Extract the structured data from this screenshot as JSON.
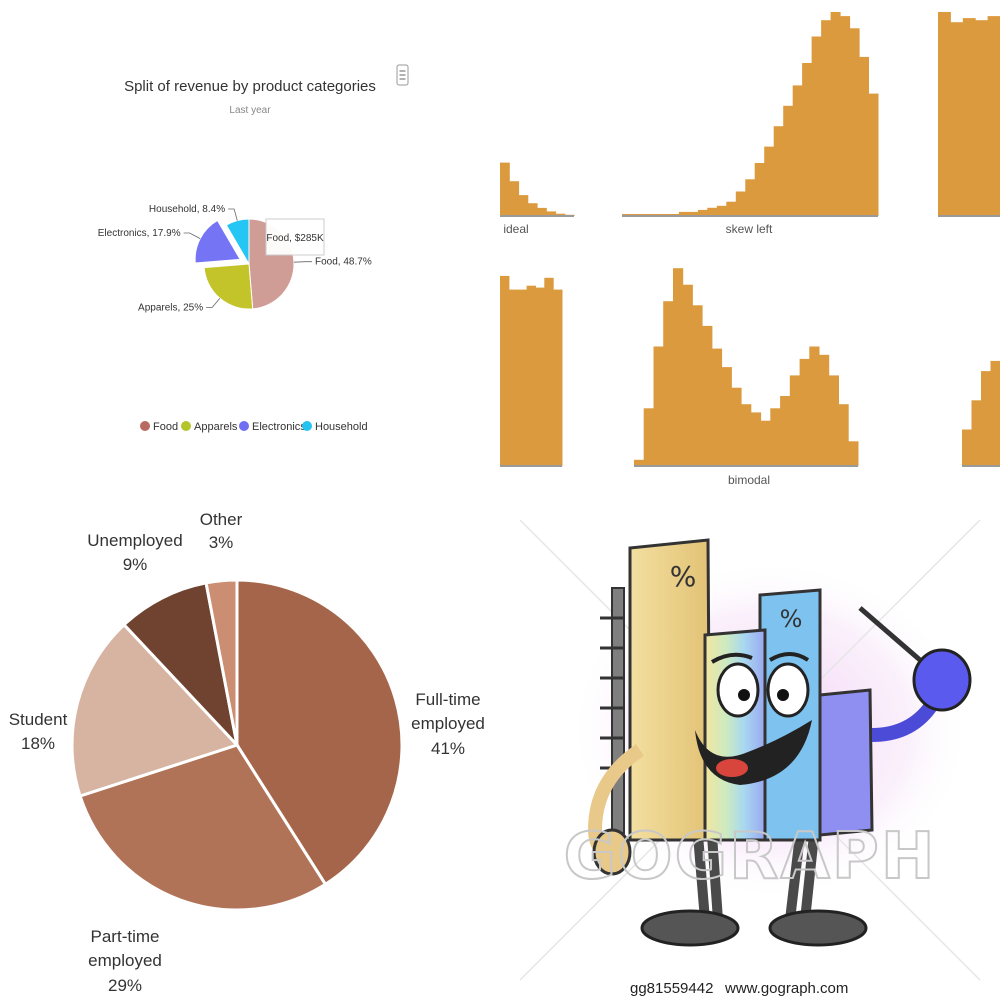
{
  "chart_data": [
    {
      "type": "pie",
      "title": "Split of revenue by product categories",
      "subtitle": "Last year",
      "slices": [
        {
          "name": "Food",
          "value": 48.7,
          "label": "Food, 48.7%",
          "color": "#d09d96"
        },
        {
          "name": "Apparels",
          "value": 25,
          "label": "Apparels, 25%",
          "color": "#c2c42a"
        },
        {
          "name": "Electronics",
          "value": 17.9,
          "label": "Electronics, 17.9%",
          "color": "#7474f4"
        },
        {
          "name": "Household",
          "value": 8.4,
          "label": "Household, 8.4%",
          "color": "#25c6f4"
        }
      ],
      "legend": [
        "Food",
        "Apparels",
        "Electronics",
        "Household"
      ],
      "legend_colors": [
        "#b86a62",
        "#b4c42a",
        "#6f6ff2",
        "#27c3f0"
      ],
      "legend_position": "bottom",
      "tooltip": "Food, $285K",
      "sliced": "Electronics"
    },
    {
      "type": "bar",
      "panels": [
        {
          "caption": "ideal",
          "heights": [
            0.46,
            0.3,
            0.18,
            0.11,
            0.07,
            0.04,
            0.02,
            0.01
          ]
        },
        {
          "caption": "skew left",
          "heights": [
            0.01,
            0.01,
            0.01,
            0.01,
            0.01,
            0.01,
            0.02,
            0.02,
            0.03,
            0.04,
            0.05,
            0.07,
            0.12,
            0.18,
            0.26,
            0.34,
            0.44,
            0.54,
            0.64,
            0.75,
            0.88,
            0.96,
            1.0,
            0.98,
            0.92,
            0.78,
            0.6
          ]
        },
        {
          "caption": "",
          "heights": [
            1.0,
            0.95,
            0.97,
            0.96,
            0.98
          ]
        },
        {
          "caption": "",
          "heights": [
            0.97,
            0.9,
            0.9,
            0.92,
            0.91,
            0.96,
            0.9
          ]
        },
        {
          "caption": "bimodal",
          "heights": [
            0.03,
            0.28,
            0.58,
            0.8,
            0.96,
            0.88,
            0.78,
            0.68,
            0.57,
            0.48,
            0.38,
            0.3,
            0.26,
            0.22,
            0.28,
            0.34,
            0.44,
            0.52,
            0.58,
            0.54,
            0.44,
            0.3,
            0.12
          ]
        },
        {
          "caption": "",
          "heights": [
            0.25,
            0.45,
            0.65,
            0.72
          ]
        }
      ],
      "color": "#dc9a3f"
    },
    {
      "type": "pie",
      "slices": [
        {
          "name": "Full-time employed",
          "value": 41,
          "line1": "Full-time",
          "line2": "employed",
          "pct": "41%",
          "color": "#a5654a"
        },
        {
          "name": "Part-time employed",
          "value": 29,
          "line1": "Part-time",
          "line2": "employed",
          "pct": "29%",
          "color": "#b07358"
        },
        {
          "name": "Student",
          "value": 18,
          "line1": "Student",
          "line2": "",
          "pct": "18%",
          "color": "#d7b4a2"
        },
        {
          "name": "Unemployed",
          "value": 9,
          "line1": "Unemployed",
          "line2": "",
          "pct": "9%",
          "color": "#6f432f"
        },
        {
          "name": "Other",
          "value": 3,
          "line1": "Other",
          "line2": "",
          "pct": "3%",
          "color": "#cc8e72"
        }
      ]
    }
  ],
  "clipart": {
    "watermark": "GOGRAPH",
    "image_id": "gg81559442",
    "site": "www.gograph.com",
    "percent_symbol": "%"
  }
}
